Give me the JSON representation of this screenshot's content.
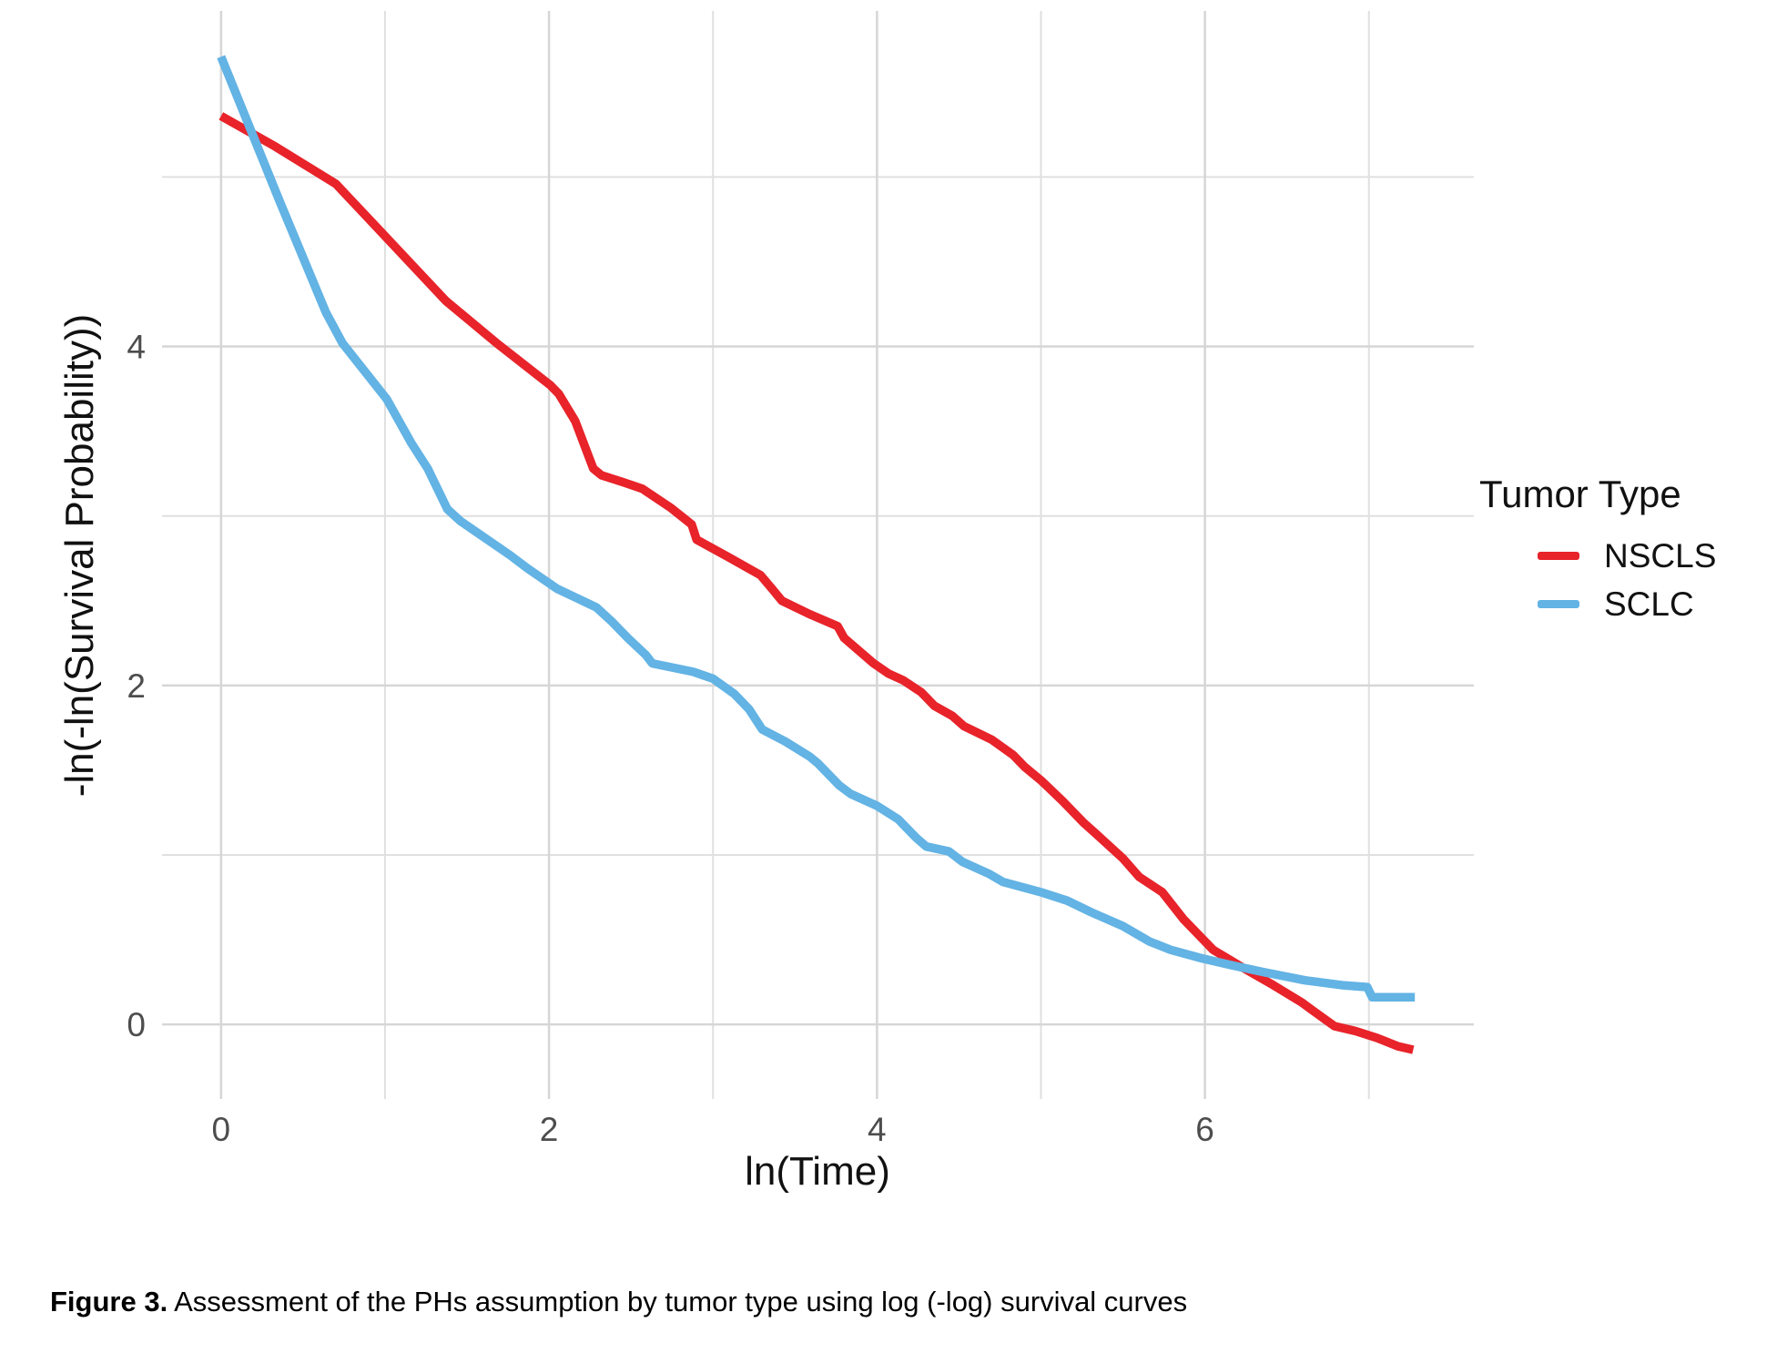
{
  "figure": {
    "caption_label": "Figure 3.",
    "caption_text": " Assessment of the PHs assumption by tumor type using log (-log) survival curves"
  },
  "chart_data": {
    "type": "line",
    "title": "",
    "xlabel": "ln(Time)",
    "ylabel": "-ln(-ln(Survival Probability))",
    "xlim": [
      -0.36,
      7.64
    ],
    "ylim": [
      -0.44,
      5.98
    ],
    "x_major_ticks": [
      {
        "v": 0,
        "label": "0"
      },
      {
        "v": 2,
        "label": "2"
      },
      {
        "v": 4,
        "label": "4"
      },
      {
        "v": 6,
        "label": "6"
      }
    ],
    "x_minor_gridlines": [
      1,
      3,
      5,
      7
    ],
    "y_major_ticks": [
      {
        "v": 0,
        "label": "0"
      },
      {
        "v": 2,
        "label": "2"
      },
      {
        "v": 4,
        "label": "4"
      }
    ],
    "y_minor_gridlines": [
      1,
      3,
      5
    ],
    "grid": true,
    "legend": {
      "title": "Tumor Type",
      "position": "right"
    },
    "colors": {
      "major_grid": "#D6D6D6",
      "minor_grid": "#E0E0E0",
      "tick_text": "#4D4D4D"
    },
    "series": [
      {
        "name": "NSCLS",
        "color": "#E8232A",
        "points": [
          [
            0,
            5.36
          ],
          [
            0.33,
            5.18
          ],
          [
            0.7,
            4.96
          ],
          [
            1.03,
            4.62
          ],
          [
            1.37,
            4.27
          ],
          [
            1.68,
            4.02
          ],
          [
            2.01,
            3.77
          ],
          [
            2.06,
            3.72
          ],
          [
            2.16,
            3.56
          ],
          [
            2.27,
            3.28
          ],
          [
            2.32,
            3.24
          ],
          [
            2.45,
            3.2
          ],
          [
            2.57,
            3.16
          ],
          [
            2.74,
            3.05
          ],
          [
            2.87,
            2.95
          ],
          [
            2.9,
            2.86
          ],
          [
            3.09,
            2.76
          ],
          [
            3.29,
            2.65
          ],
          [
            3.36,
            2.57
          ],
          [
            3.42,
            2.5
          ],
          [
            3.59,
            2.42
          ],
          [
            3.76,
            2.35
          ],
          [
            3.8,
            2.28
          ],
          [
            3.98,
            2.13
          ],
          [
            4.07,
            2.07
          ],
          [
            4.16,
            2.03
          ],
          [
            4.27,
            1.96
          ],
          [
            4.35,
            1.88
          ],
          [
            4.46,
            1.82
          ],
          [
            4.53,
            1.76
          ],
          [
            4.7,
            1.68
          ],
          [
            4.83,
            1.59
          ],
          [
            4.9,
            1.52
          ],
          [
            5.0,
            1.44
          ],
          [
            5.13,
            1.32
          ],
          [
            5.26,
            1.19
          ],
          [
            5.33,
            1.13
          ],
          [
            5.5,
            0.98
          ],
          [
            5.6,
            0.87
          ],
          [
            5.74,
            0.78
          ],
          [
            5.87,
            0.62
          ],
          [
            5.96,
            0.53
          ],
          [
            6.05,
            0.44
          ],
          [
            6.24,
            0.33
          ],
          [
            6.42,
            0.23
          ],
          [
            6.59,
            0.13
          ],
          [
            6.66,
            0.08
          ],
          [
            6.79,
            -0.01
          ],
          [
            6.92,
            -0.04
          ],
          [
            7.05,
            -0.08
          ],
          [
            7.18,
            -0.13
          ],
          [
            7.27,
            -0.15
          ]
        ]
      },
      {
        "name": "SCLC",
        "color": "#63B3E4",
        "points": [
          [
            0,
            5.71
          ],
          [
            0.36,
            4.85
          ],
          [
            0.64,
            4.2
          ],
          [
            0.74,
            4.02
          ],
          [
            1.01,
            3.69
          ],
          [
            1.16,
            3.43
          ],
          [
            1.26,
            3.28
          ],
          [
            1.38,
            3.04
          ],
          [
            1.46,
            2.97
          ],
          [
            1.76,
            2.77
          ],
          [
            1.87,
            2.69
          ],
          [
            2.05,
            2.57
          ],
          [
            2.29,
            2.46
          ],
          [
            2.38,
            2.38
          ],
          [
            2.48,
            2.28
          ],
          [
            2.59,
            2.18
          ],
          [
            2.63,
            2.13
          ],
          [
            2.88,
            2.08
          ],
          [
            3.0,
            2.04
          ],
          [
            3.13,
            1.95
          ],
          [
            3.22,
            1.86
          ],
          [
            3.3,
            1.74
          ],
          [
            3.44,
            1.67
          ],
          [
            3.59,
            1.58
          ],
          [
            3.64,
            1.54
          ],
          [
            3.77,
            1.41
          ],
          [
            3.84,
            1.36
          ],
          [
            4.0,
            1.29
          ],
          [
            4.13,
            1.21
          ],
          [
            4.24,
            1.1
          ],
          [
            4.3,
            1.05
          ],
          [
            4.44,
            1.02
          ],
          [
            4.52,
            0.96
          ],
          [
            4.68,
            0.89
          ],
          [
            4.77,
            0.84
          ],
          [
            5.0,
            0.78
          ],
          [
            5.16,
            0.73
          ],
          [
            5.31,
            0.66
          ],
          [
            5.5,
            0.58
          ],
          [
            5.66,
            0.49
          ],
          [
            5.79,
            0.44
          ],
          [
            5.98,
            0.39
          ],
          [
            6.16,
            0.35
          ],
          [
            6.35,
            0.31
          ],
          [
            6.61,
            0.26
          ],
          [
            6.85,
            0.23
          ],
          [
            6.99,
            0.22
          ],
          [
            7.02,
            0.16
          ],
          [
            7.28,
            0.16
          ]
        ]
      }
    ]
  }
}
